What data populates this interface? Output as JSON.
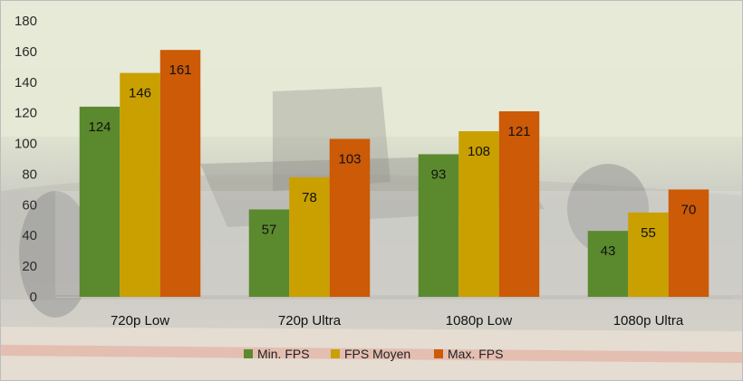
{
  "chart_data": {
    "type": "bar",
    "categories": [
      "720p Low",
      "720p Ultra",
      "1080p Low",
      "1080p Ultra"
    ],
    "series": [
      {
        "name": "Min. FPS",
        "color": "#5b8a2e",
        "values": [
          124,
          57,
          93,
          43
        ]
      },
      {
        "name": "FPS Moyen",
        "color": "#c9a000",
        "values": [
          146,
          78,
          108,
          55
        ]
      },
      {
        "name": "Max. FPS",
        "color": "#cc5a06",
        "values": [
          161,
          103,
          121,
          70
        ]
      }
    ],
    "yticks": [
      "0",
      "20",
      "40",
      "60",
      "80",
      "100",
      "120",
      "140",
      "160",
      "180"
    ],
    "ylim": [
      0,
      180
    ],
    "grid": false,
    "legend_position": "bottom",
    "data_labels": true,
    "background": "photo of a Formula 1 racing car on track (faded)"
  }
}
